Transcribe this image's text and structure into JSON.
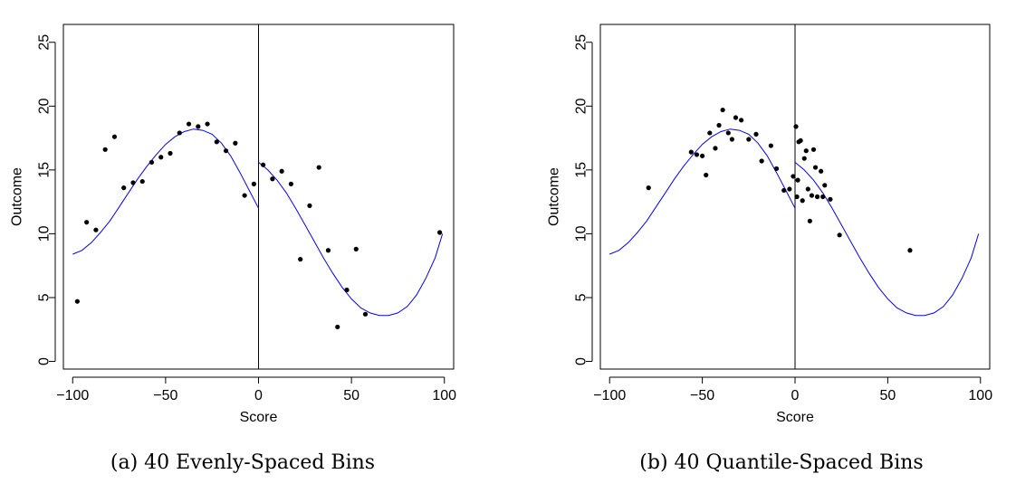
{
  "chart_data": [
    {
      "type": "scatter",
      "caption": "(a) 40 Evenly-Spaced Bins",
      "xlabel": "Score",
      "ylabel": "Outcome",
      "xlim": [
        -105,
        105
      ],
      "ylim": [
        -0.6,
        26.4
      ],
      "xticks": [
        -100,
        -50,
        0,
        50,
        100
      ],
      "xtick_labels": [
        "−100",
        "−50",
        "0",
        "50",
        "100"
      ],
      "yticks": [
        0,
        5,
        10,
        15,
        20,
        25
      ],
      "ytick_labels": [
        "0",
        "5",
        "10",
        "15",
        "20",
        "25"
      ],
      "cutoff": 0,
      "grid": false,
      "point_color": "#000000",
      "line_color": "#0000ff",
      "points": [
        {
          "x": -97.5,
          "y": 4.7
        },
        {
          "x": -92.5,
          "y": 10.9
        },
        {
          "x": -87.5,
          "y": 10.3
        },
        {
          "x": -82.5,
          "y": 16.6
        },
        {
          "x": -77.5,
          "y": 17.6
        },
        {
          "x": -72.5,
          "y": 13.6
        },
        {
          "x": -67.5,
          "y": 14.0
        },
        {
          "x": -62.5,
          "y": 14.1
        },
        {
          "x": -57.5,
          "y": 15.6
        },
        {
          "x": -52.5,
          "y": 16.0
        },
        {
          "x": -47.5,
          "y": 16.3
        },
        {
          "x": -42.5,
          "y": 17.9
        },
        {
          "x": -37.5,
          "y": 18.6
        },
        {
          "x": -32.5,
          "y": 18.4
        },
        {
          "x": -27.5,
          "y": 18.6
        },
        {
          "x": -22.5,
          "y": 17.2
        },
        {
          "x": -17.5,
          "y": 16.5
        },
        {
          "x": -12.5,
          "y": 17.1
        },
        {
          "x": -7.5,
          "y": 13.0
        },
        {
          "x": -2.5,
          "y": 13.9
        },
        {
          "x": 2.5,
          "y": 15.4
        },
        {
          "x": 7.5,
          "y": 14.3
        },
        {
          "x": 12.5,
          "y": 14.9
        },
        {
          "x": 17.5,
          "y": 13.9
        },
        {
          "x": 22.5,
          "y": 8.0
        },
        {
          "x": 27.5,
          "y": 12.2
        },
        {
          "x": 32.5,
          "y": 15.2
        },
        {
          "x": 37.5,
          "y": 8.7
        },
        {
          "x": 42.5,
          "y": 2.7
        },
        {
          "x": 47.5,
          "y": 5.6
        },
        {
          "x": 52.5,
          "y": 8.8
        },
        {
          "x": 57.5,
          "y": 3.7
        },
        {
          "x": 97.5,
          "y": 10.1
        }
      ],
      "fit_left": [
        {
          "x": -100,
          "y": 8.4
        },
        {
          "x": -95,
          "y": 8.7
        },
        {
          "x": -90,
          "y": 9.3
        },
        {
          "x": -85,
          "y": 10.1
        },
        {
          "x": -80,
          "y": 11.0
        },
        {
          "x": -75,
          "y": 12.1
        },
        {
          "x": -70,
          "y": 13.2
        },
        {
          "x": -65,
          "y": 14.3
        },
        {
          "x": -60,
          "y": 15.3
        },
        {
          "x": -55,
          "y": 16.2
        },
        {
          "x": -50,
          "y": 17.0
        },
        {
          "x": -45,
          "y": 17.6
        },
        {
          "x": -40,
          "y": 18.0
        },
        {
          "x": -35,
          "y": 18.2
        },
        {
          "x": -30,
          "y": 18.1
        },
        {
          "x": -25,
          "y": 17.8
        },
        {
          "x": -20,
          "y": 17.1
        },
        {
          "x": -15,
          "y": 16.1
        },
        {
          "x": -10,
          "y": 14.8
        },
        {
          "x": -5,
          "y": 13.4
        },
        {
          "x": 0,
          "y": 12.0
        }
      ],
      "fit_right": [
        {
          "x": 0,
          "y": 15.6
        },
        {
          "x": 5,
          "y": 15.0
        },
        {
          "x": 10,
          "y": 14.2
        },
        {
          "x": 15,
          "y": 13.2
        },
        {
          "x": 20,
          "y": 12.0
        },
        {
          "x": 25,
          "y": 10.7
        },
        {
          "x": 30,
          "y": 9.4
        },
        {
          "x": 35,
          "y": 8.1
        },
        {
          "x": 40,
          "y": 6.9
        },
        {
          "x": 45,
          "y": 5.8
        },
        {
          "x": 50,
          "y": 4.9
        },
        {
          "x": 55,
          "y": 4.2
        },
        {
          "x": 60,
          "y": 3.8
        },
        {
          "x": 65,
          "y": 3.6
        },
        {
          "x": 70,
          "y": 3.6
        },
        {
          "x": 75,
          "y": 3.8
        },
        {
          "x": 80,
          "y": 4.3
        },
        {
          "x": 85,
          "y": 5.2
        },
        {
          "x": 90,
          "y": 6.5
        },
        {
          "x": 95,
          "y": 8.1
        },
        {
          "x": 99,
          "y": 10.0
        }
      ]
    },
    {
      "type": "scatter",
      "caption": "(b) 40 Quantile-Spaced Bins",
      "xlabel": "Score",
      "ylabel": "Outcome",
      "xlim": [
        -105,
        105
      ],
      "ylim": [
        -0.6,
        26.4
      ],
      "xticks": [
        -100,
        -50,
        0,
        50,
        100
      ],
      "xtick_labels": [
        "−100",
        "−50",
        "0",
        "50",
        "100"
      ],
      "yticks": [
        0,
        5,
        10,
        15,
        20,
        25
      ],
      "ytick_labels": [
        "0",
        "5",
        "10",
        "15",
        "20",
        "25"
      ],
      "cutoff": 0,
      "grid": false,
      "point_color": "#000000",
      "line_color": "#0000ff",
      "points": [
        {
          "x": -79,
          "y": 13.6
        },
        {
          "x": -56,
          "y": 16.4
        },
        {
          "x": -53,
          "y": 16.2
        },
        {
          "x": -50,
          "y": 16.1
        },
        {
          "x": -48,
          "y": 14.6
        },
        {
          "x": -46,
          "y": 17.9
        },
        {
          "x": -43,
          "y": 16.7
        },
        {
          "x": -41,
          "y": 18.5
        },
        {
          "x": -39,
          "y": 19.7
        },
        {
          "x": -36,
          "y": 17.9
        },
        {
          "x": -34,
          "y": 17.4
        },
        {
          "x": -32,
          "y": 19.1
        },
        {
          "x": -29,
          "y": 18.9
        },
        {
          "x": -25,
          "y": 17.4
        },
        {
          "x": -21,
          "y": 17.8
        },
        {
          "x": -18,
          "y": 15.7
        },
        {
          "x": -13,
          "y": 16.9
        },
        {
          "x": -10,
          "y": 15.1
        },
        {
          "x": -6,
          "y": 13.4
        },
        {
          "x": -3,
          "y": 13.5
        },
        {
          "x": -1,
          "y": 14.5
        },
        {
          "x": 0.5,
          "y": 18.4
        },
        {
          "x": 1,
          "y": 12.9
        },
        {
          "x": 1.5,
          "y": 14.2
        },
        {
          "x": 2,
          "y": 17.2
        },
        {
          "x": 3,
          "y": 17.3
        },
        {
          "x": 4,
          "y": 12.6
        },
        {
          "x": 5,
          "y": 15.9
        },
        {
          "x": 6,
          "y": 16.5
        },
        {
          "x": 7,
          "y": 13.5
        },
        {
          "x": 8,
          "y": 11.0
        },
        {
          "x": 9,
          "y": 13.0
        },
        {
          "x": 10,
          "y": 16.6
        },
        {
          "x": 11,
          "y": 15.2
        },
        {
          "x": 12,
          "y": 12.9
        },
        {
          "x": 14,
          "y": 14.9
        },
        {
          "x": 15,
          "y": 12.9
        },
        {
          "x": 16,
          "y": 13.8
        },
        {
          "x": 19,
          "y": 12.7
        },
        {
          "x": 24,
          "y": 9.9
        },
        {
          "x": 62,
          "y": 8.7
        }
      ],
      "fit_left": [
        {
          "x": -100,
          "y": 8.4
        },
        {
          "x": -95,
          "y": 8.7
        },
        {
          "x": -90,
          "y": 9.3
        },
        {
          "x": -85,
          "y": 10.1
        },
        {
          "x": -80,
          "y": 11.0
        },
        {
          "x": -75,
          "y": 12.1
        },
        {
          "x": -70,
          "y": 13.2
        },
        {
          "x": -65,
          "y": 14.3
        },
        {
          "x": -60,
          "y": 15.3
        },
        {
          "x": -55,
          "y": 16.2
        },
        {
          "x": -50,
          "y": 17.0
        },
        {
          "x": -45,
          "y": 17.6
        },
        {
          "x": -40,
          "y": 18.0
        },
        {
          "x": -35,
          "y": 18.2
        },
        {
          "x": -30,
          "y": 18.1
        },
        {
          "x": -25,
          "y": 17.8
        },
        {
          "x": -20,
          "y": 17.1
        },
        {
          "x": -15,
          "y": 16.1
        },
        {
          "x": -10,
          "y": 14.8
        },
        {
          "x": -5,
          "y": 13.4
        },
        {
          "x": 0,
          "y": 12.0
        }
      ],
      "fit_right": [
        {
          "x": 0,
          "y": 15.6
        },
        {
          "x": 5,
          "y": 15.0
        },
        {
          "x": 10,
          "y": 14.2
        },
        {
          "x": 15,
          "y": 13.2
        },
        {
          "x": 20,
          "y": 12.0
        },
        {
          "x": 25,
          "y": 10.7
        },
        {
          "x": 30,
          "y": 9.4
        },
        {
          "x": 35,
          "y": 8.1
        },
        {
          "x": 40,
          "y": 6.9
        },
        {
          "x": 45,
          "y": 5.8
        },
        {
          "x": 50,
          "y": 4.9
        },
        {
          "x": 55,
          "y": 4.2
        },
        {
          "x": 60,
          "y": 3.8
        },
        {
          "x": 65,
          "y": 3.6
        },
        {
          "x": 70,
          "y": 3.6
        },
        {
          "x": 75,
          "y": 3.8
        },
        {
          "x": 80,
          "y": 4.3
        },
        {
          "x": 85,
          "y": 5.2
        },
        {
          "x": 90,
          "y": 6.5
        },
        {
          "x": 95,
          "y": 8.1
        },
        {
          "x": 99,
          "y": 10.0
        }
      ]
    }
  ]
}
